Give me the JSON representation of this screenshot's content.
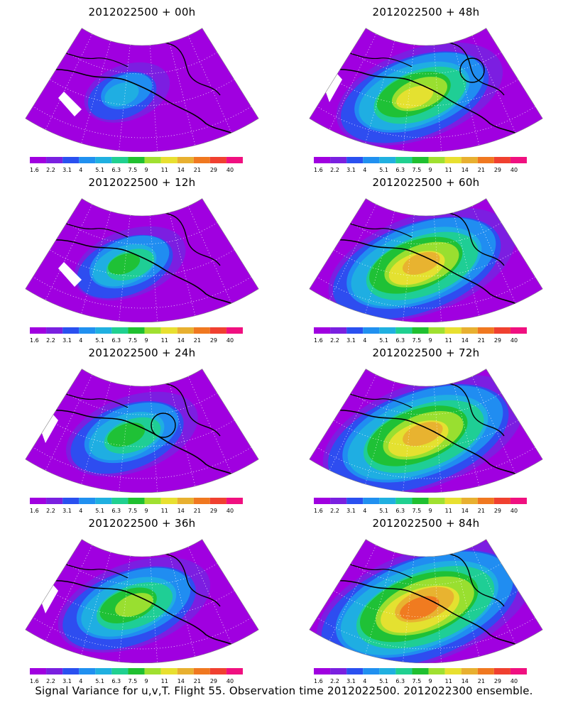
{
  "panels": [
    {
      "title": "2012022500 + 00h",
      "level": 0.15,
      "circle": false
    },
    {
      "title": "2012022500 + 48h",
      "level": 0.55,
      "circle": true
    },
    {
      "title": "2012022500 + 12h",
      "level": 0.28,
      "circle": false
    },
    {
      "title": "2012022500 + 60h",
      "level": 0.65,
      "circle": false
    },
    {
      "title": "2012022500 + 24h",
      "level": 0.38,
      "circle": true
    },
    {
      "title": "2012022500 + 72h",
      "level": 0.72,
      "circle": false
    },
    {
      "title": "2012022500 + 36h",
      "level": 0.48,
      "circle": false
    },
    {
      "title": "2012022500 + 84h",
      "level": 0.8,
      "circle": false
    }
  ],
  "colorbar": {
    "labels": [
      "1.6",
      "2.2",
      "3.1",
      "4",
      "5.1",
      "6.3",
      "7.5",
      "9",
      "11",
      "14",
      "21",
      "29",
      "40"
    ],
    "colors": [
      "#a000e0",
      "#7a20e0",
      "#2a50f0",
      "#2090f0",
      "#20b0e0",
      "#20d090",
      "#20c030",
      "#a0e030",
      "#e8e030",
      "#e8b030",
      "#f07820",
      "#f04030",
      "#f01080"
    ]
  },
  "caption": "Signal Variance for u,v,T. Flight 55. Observation time 2012022500. 2012022300 ensemble."
}
